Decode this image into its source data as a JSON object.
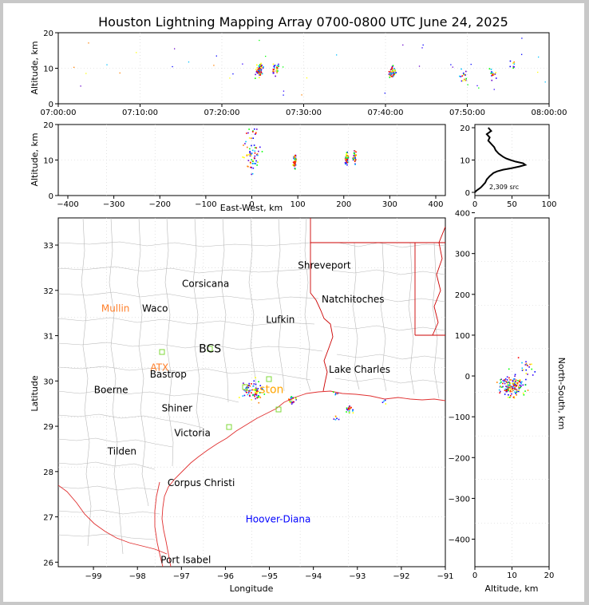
{
  "title": "Houston Lightning Mapping Array 0700-0800 UTC June 24, 2025",
  "colors": {
    "frame": "#c8c8c8",
    "coast": "#e03030",
    "state": "#cc0000",
    "county": "#b8b8b8",
    "grid": "#d0d0d0"
  },
  "chart_data": [
    {
      "id": "time-altitude",
      "type": "scatter",
      "ylabel": "Altitude, km",
      "ylim": [
        0,
        20
      ],
      "yticks": [
        "0",
        "10",
        "20"
      ],
      "xlim_minutes": [
        0,
        60
      ],
      "xticks": [
        "07:00:00",
        "07:10:00",
        "07:20:00",
        "07:30:00",
        "07:40:00",
        "07:50:00",
        "08:00:00"
      ],
      "clusters": [
        {
          "t": 24.5,
          "alt": 9.5,
          "n": 60
        },
        {
          "t": 26.5,
          "alt": 10,
          "n": 30
        },
        {
          "t": 40.8,
          "alt": 9,
          "n": 50
        },
        {
          "t": 49.5,
          "alt": 8,
          "n": 15
        },
        {
          "t": 53,
          "alt": 8.5,
          "n": 15
        },
        {
          "t": 55.5,
          "alt": 11,
          "n": 8
        }
      ]
    },
    {
      "id": "ew-altitude",
      "type": "scatter",
      "xlabel": "East-West, km",
      "ylabel": "Altitude, km",
      "xlim": [
        -420,
        420
      ],
      "ylim": [
        0,
        20
      ],
      "xticks": [
        "−400",
        "−300",
        "−200",
        "−100",
        "0",
        "100",
        "200",
        "300",
        "400"
      ],
      "yticks": [
        "0",
        "10",
        "20"
      ],
      "clusters": [
        {
          "x": 0,
          "alt": 12,
          "n": 70
        },
        {
          "x": 92,
          "alt": 9.5,
          "n": 60
        },
        {
          "x": 205,
          "alt": 10.5,
          "n": 40
        },
        {
          "x": 222,
          "alt": 11,
          "n": 30
        }
      ]
    },
    {
      "id": "altitude-histogram",
      "type": "line",
      "xlim": [
        0,
        100
      ],
      "ylim": [
        0,
        20
      ],
      "xticks": [
        "0",
        "50",
        "100"
      ],
      "yticks": [
        "0",
        "10",
        "20"
      ],
      "annotation": "2,309 src",
      "profile": [
        [
          0,
          0
        ],
        [
          2,
          0.5
        ],
        [
          5,
          1
        ],
        [
          8,
          1.5
        ],
        [
          10,
          2
        ],
        [
          14,
          3
        ],
        [
          16,
          4
        ],
        [
          20,
          5
        ],
        [
          25,
          6
        ],
        [
          30,
          6.5
        ],
        [
          38,
          7
        ],
        [
          50,
          7.5
        ],
        [
          60,
          8
        ],
        [
          68,
          8.5
        ],
        [
          65,
          9
        ],
        [
          55,
          9.5
        ],
        [
          48,
          10
        ],
        [
          42,
          10.5
        ],
        [
          38,
          11
        ],
        [
          35,
          11.5
        ],
        [
          32,
          12
        ],
        [
          28,
          13
        ],
        [
          26,
          14
        ],
        [
          22,
          15
        ],
        [
          18,
          16
        ],
        [
          20,
          17
        ],
        [
          16,
          18
        ],
        [
          22,
          19
        ],
        [
          18,
          20
        ]
      ]
    },
    {
      "id": "plan-view",
      "type": "scatter",
      "xlabel": "Longitude",
      "ylabel": "Latitude",
      "xlim": [
        -99.8,
        -91
      ],
      "ylim": [
        25.9,
        33.6
      ],
      "xticks": [
        "−99",
        "−98",
        "−97",
        "−96",
        "−95",
        "−94",
        "−93",
        "−92",
        "−91"
      ],
      "yticks": [
        "26",
        "27",
        "28",
        "29",
        "30",
        "31",
        "32",
        "33"
      ],
      "cities": [
        {
          "name": "Shreveport",
          "lon": -93.75,
          "lat": 32.55,
          "color": "#000000"
        },
        {
          "name": "Corsicana",
          "lon": -96.45,
          "lat": 32.15,
          "color": "#000000"
        },
        {
          "name": "Natchitoches",
          "lon": -93.1,
          "lat": 31.8,
          "color": "#000000"
        },
        {
          "name": "Mullin",
          "lon": -98.5,
          "lat": 31.6,
          "color": "#ff7f2a"
        },
        {
          "name": "Waco",
          "lon": -97.6,
          "lat": 31.6,
          "color": "#000000"
        },
        {
          "name": "Lufkin",
          "lon": -94.75,
          "lat": 31.35,
          "color": "#000000"
        },
        {
          "name": "BCS",
          "lon": -96.35,
          "lat": 30.7,
          "color": "#000000"
        },
        {
          "name": "ATX",
          "lon": -97.5,
          "lat": 30.3,
          "color": "#ff7f2a"
        },
        {
          "name": "Bastrop",
          "lon": -97.3,
          "lat": 30.15,
          "color": "#000000"
        },
        {
          "name": "Lake Charles",
          "lon": -92.95,
          "lat": 30.25,
          "color": "#000000"
        },
        {
          "name": "Boerne",
          "lon": -98.6,
          "lat": 29.8,
          "color": "#000000"
        },
        {
          "name": "ston",
          "lon": -94.95,
          "lat": 29.8,
          "color": "#ffa500"
        },
        {
          "name": "Shiner",
          "lon": -97.1,
          "lat": 29.4,
          "color": "#000000"
        },
        {
          "name": "Victoria",
          "lon": -96.75,
          "lat": 28.85,
          "color": "#000000"
        },
        {
          "name": "Tilden",
          "lon": -98.35,
          "lat": 28.45,
          "color": "#000000"
        },
        {
          "name": "Corpus Christi",
          "lon": -96.55,
          "lat": 27.75,
          "color": "#000000"
        },
        {
          "name": "Hoover-Diana",
          "lon": -94.8,
          "lat": 26.95,
          "color": "#0000ff"
        },
        {
          "name": "Port Isabel",
          "lon": -96.9,
          "lat": 26.05,
          "color": "#000000"
        }
      ],
      "clusters": [
        {
          "lon": -95.4,
          "lat": 29.8,
          "n": 80
        },
        {
          "lon": -94.5,
          "lat": 29.6,
          "n": 25
        },
        {
          "lon": -93.2,
          "lat": 29.4,
          "n": 25
        },
        {
          "lon": -93.5,
          "lat": 29.2,
          "n": 6
        },
        {
          "lon": -93.5,
          "lat": 29.75,
          "n": 5
        },
        {
          "lon": -92.4,
          "lat": 29.55,
          "n": 4
        }
      ]
    },
    {
      "id": "ns-altitude",
      "type": "scatter",
      "xlabel": "Altitude, km",
      "ylabel": "North-South, km",
      "xlim": [
        0,
        20
      ],
      "ylim": [
        -420,
        420
      ],
      "xticks": [
        "0",
        "10",
        "20"
      ],
      "yticks": [
        "−400",
        "−300",
        "−200",
        "−100",
        "0",
        "100",
        "200",
        "300",
        "400"
      ],
      "clusters": [
        {
          "alt": 10,
          "y": -25,
          "n": 160
        },
        {
          "alt": 13,
          "y": 20,
          "n": 20
        }
      ]
    }
  ]
}
